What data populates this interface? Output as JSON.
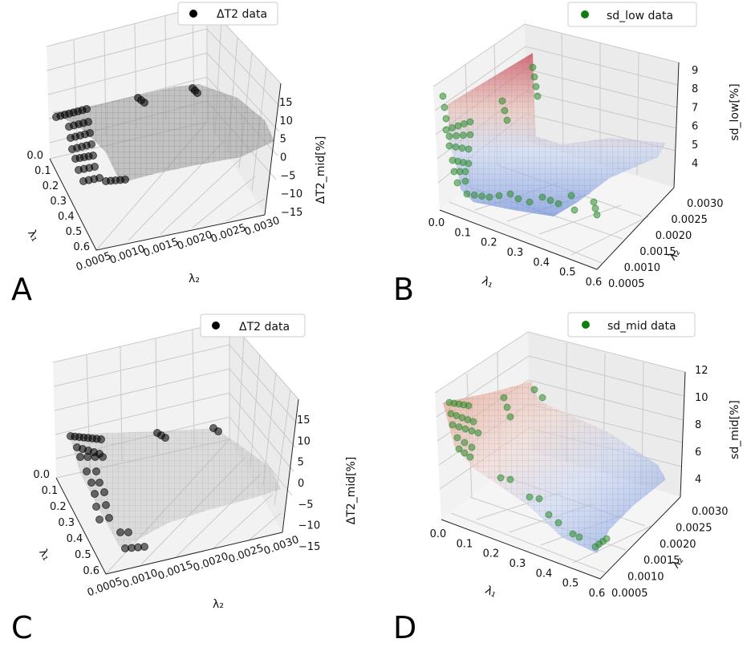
{
  "chart_data": [
    {
      "panel": "A",
      "type": "surface3d",
      "legend": "ΔT2 data",
      "marker_color": "#000000",
      "surface_color": "#8a8a8a",
      "zlabel": "ΔT2_mid[%]",
      "xlabel": "λ₁",
      "ylabel": "λ₂",
      "xticks": [
        "0.0",
        "0.1",
        "0.2",
        "0.3",
        "0.4",
        "0.5",
        "0.6"
      ],
      "yticks": [
        "0.0005",
        "0.0010",
        "0.0015",
        "0.0020",
        "0.0025",
        "0.0030"
      ],
      "zticks": [
        "−15",
        "−10",
        "−5",
        "0",
        "5",
        "10",
        "15"
      ],
      "zlim": [
        -15,
        15
      ]
    },
    {
      "panel": "B",
      "type": "surface3d",
      "legend": "sd_low data",
      "marker_color": "#2e8b2e",
      "surface_color": "coolwarm",
      "zlabel": "sd_low[%]",
      "xlabel": "λ₁",
      "ylabel": "λ₂",
      "xticks": [
        "0.0",
        "0.1",
        "0.2",
        "0.3",
        "0.4",
        "0.5",
        "0.6"
      ],
      "yticks": [
        "0.0005",
        "0.0010",
        "0.0015",
        "0.0020",
        "0.0025",
        "0.0030"
      ],
      "zticks": [
        "4",
        "5",
        "6",
        "7",
        "8",
        "9"
      ],
      "zlim": [
        3.5,
        9.3
      ]
    },
    {
      "panel": "C",
      "type": "surface3d",
      "legend": "ΔT2 data",
      "marker_color": "#000000",
      "surface_color": "#9a9a9a",
      "zlabel": "ΔT2_mid[%]",
      "xlabel": "λ₁",
      "ylabel": "λ₂",
      "xticks": [
        "0.0",
        "0.1",
        "0.2",
        "0.3",
        "0.4",
        "0.5",
        "0.6"
      ],
      "yticks": [
        "0.0005",
        "0.0010",
        "0.0015",
        "0.0020",
        "0.0025",
        "0.0030"
      ],
      "zticks": [
        "−15",
        "−10",
        "−5",
        "0",
        "5",
        "10",
        "15"
      ],
      "zlim": [
        -15,
        15
      ]
    },
    {
      "panel": "D",
      "type": "surface3d",
      "legend": "sd_mid data",
      "marker_color": "#2e8b2e",
      "surface_color": "coolwarm",
      "zlabel": "sd_mid[%]",
      "xlabel": "λ₁",
      "ylabel": "λ₂",
      "xticks": [
        "0.0",
        "0.1",
        "0.2",
        "0.3",
        "0.4",
        "0.5",
        "0.6"
      ],
      "yticks": [
        "0.0005",
        "0.0010",
        "0.0015",
        "0.0020",
        "0.0025",
        "0.0030"
      ],
      "zticks": [
        "4",
        "6",
        "8",
        "10",
        "12"
      ],
      "zlim": [
        4,
        12
      ]
    }
  ]
}
